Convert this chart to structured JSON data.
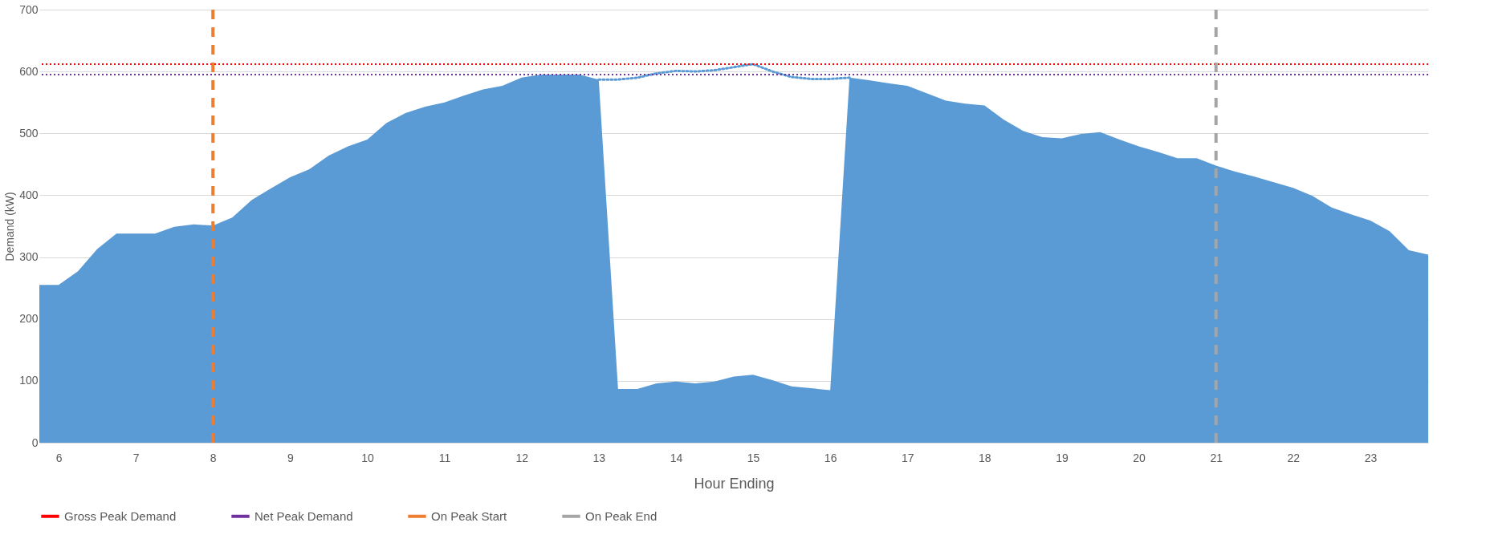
{
  "chart_data": {
    "type": "area",
    "xlabel": "Hour Ending",
    "ylabel": "Demand (kW)",
    "xlim": [
      5.75,
      23.75
    ],
    "xticks": [
      6,
      7,
      8,
      9,
      10,
      11,
      12,
      13,
      14,
      15,
      16,
      17,
      18,
      19,
      20,
      21,
      22,
      23
    ],
    "ylim": [
      0,
      700
    ],
    "yticks": [
      0,
      100,
      200,
      300,
      400,
      500,
      600,
      700
    ],
    "grid": "y",
    "legend": "bottom",
    "x": [
      5.75,
      6,
      6.25,
      6.5,
      6.75,
      7,
      7.25,
      7.5,
      7.75,
      8,
      8.25,
      8.5,
      8.75,
      9,
      9.25,
      9.5,
      9.75,
      10,
      10.25,
      10.5,
      10.75,
      11,
      11.25,
      11.5,
      11.75,
      12,
      12.25,
      12.5,
      12.75,
      13,
      13.25,
      13.5,
      13.75,
      14,
      14.25,
      14.5,
      14.75,
      15,
      15.25,
      15.5,
      15.75,
      16,
      16.25,
      16.5,
      16.75,
      17,
      17.25,
      17.5,
      17.75,
      18,
      18.25,
      18.5,
      18.75,
      19,
      19.25,
      19.5,
      19.75,
      20,
      20.25,
      20.5,
      20.75,
      21,
      21.25,
      21.5,
      21.75,
      22,
      22.25,
      22.5,
      22.75,
      23,
      23.25,
      23.5,
      23.75
    ],
    "series": [
      {
        "color": "#5b9bd5",
        "values": [
          255,
          255,
          277,
          313,
          338,
          338,
          338,
          349,
          353,
          351,
          364,
          392,
          411,
          429,
          442,
          464,
          479,
          490,
          517,
          533,
          543,
          550,
          561,
          571,
          577,
          590,
          595,
          595,
          595,
          587,
          87,
          87,
          96,
          99,
          96,
          99,
          107,
          110,
          101,
          91,
          88,
          85,
          590,
          586,
          581,
          577,
          565,
          553,
          548,
          545,
          522,
          504,
          494,
          492,
          499,
          502,
          490,
          479,
          470,
          460,
          460,
          448,
          438,
          430,
          421,
          412,
          399,
          380,
          369,
          359,
          342,
          311,
          304
        ]
      },
      {
        "type": "line",
        "color": "#5b9bd5",
        "line_style": "dotted",
        "marker": "none",
        "x": [
          13,
          13.25,
          13.5,
          13.75,
          14,
          14.25,
          14.5,
          14.75,
          15,
          15.25,
          15.5,
          15.75,
          16,
          16.25
        ],
        "values": [
          587,
          587,
          590,
          597,
          601,
          600,
          602,
          607,
          612,
          600,
          591,
          588,
          588,
          590
        ]
      }
    ],
    "ref_lines": [
      {
        "axis": "y",
        "value": 612,
        "label": "Gross Peak Demand",
        "color": "#ff0000",
        "line_style": "dotted"
      },
      {
        "axis": "y",
        "value": 595,
        "label": "Net Peak Demand",
        "color": "#7030a0",
        "line_style": "dotted"
      },
      {
        "axis": "x",
        "value": 8,
        "label": "On Peak Start",
        "color": "#ed7d31",
        "line_style": "dashed"
      },
      {
        "axis": "x",
        "value": 21,
        "label": "On Peak End",
        "color": "#a5a5a5",
        "line_style": "dashed"
      }
    ]
  }
}
